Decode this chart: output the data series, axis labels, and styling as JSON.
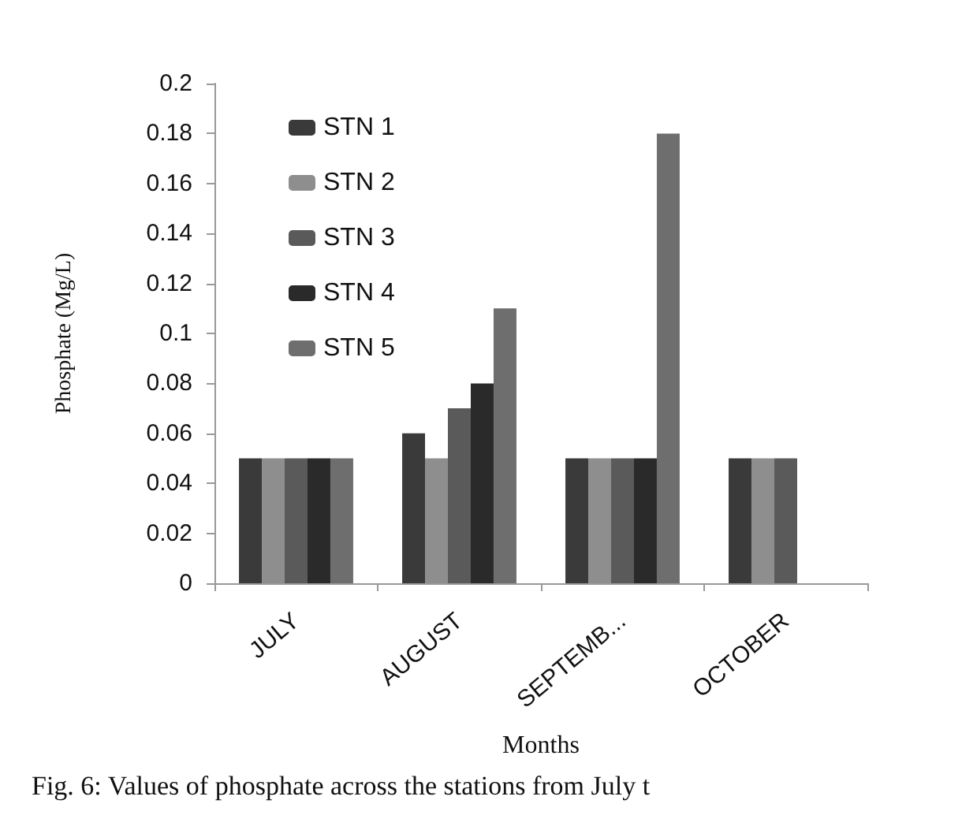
{
  "chart_data": {
    "type": "bar",
    "xlabel": "Months",
    "ylabel": "Phosphate (Mg/L)",
    "categories": [
      "JULY",
      "AUGUST",
      "SEPTEMB...",
      "OCTOBER"
    ],
    "series": [
      {
        "name": "STN 1",
        "color": "#3a3a3a",
        "values": [
          0.05,
          0.06,
          0.05,
          0.05
        ]
      },
      {
        "name": "STN 2",
        "color": "#8e8e8e",
        "values": [
          0.05,
          0.05,
          0.05,
          0.05
        ]
      },
      {
        "name": "STN 3",
        "color": "#5a5a5a",
        "values": [
          0.05,
          0.07,
          0.05,
          0.05
        ]
      },
      {
        "name": "STN 4",
        "color": "#2a2a2a",
        "values": [
          0.05,
          0.08,
          0.05,
          null
        ]
      },
      {
        "name": "STN 5",
        "color": "#6e6e6e",
        "values": [
          0.05,
          0.11,
          0.18,
          null
        ]
      }
    ],
    "ylim": [
      0,
      0.2
    ],
    "yticks": [
      0,
      0.02,
      0.04,
      0.06,
      0.08,
      0.1,
      0.12,
      0.14,
      0.16,
      0.18,
      0.2
    ],
    "grid": false,
    "legend": "top left",
    "annotations": [
      "Fig. 6: Values of phosphate across the stations from July t"
    ]
  }
}
